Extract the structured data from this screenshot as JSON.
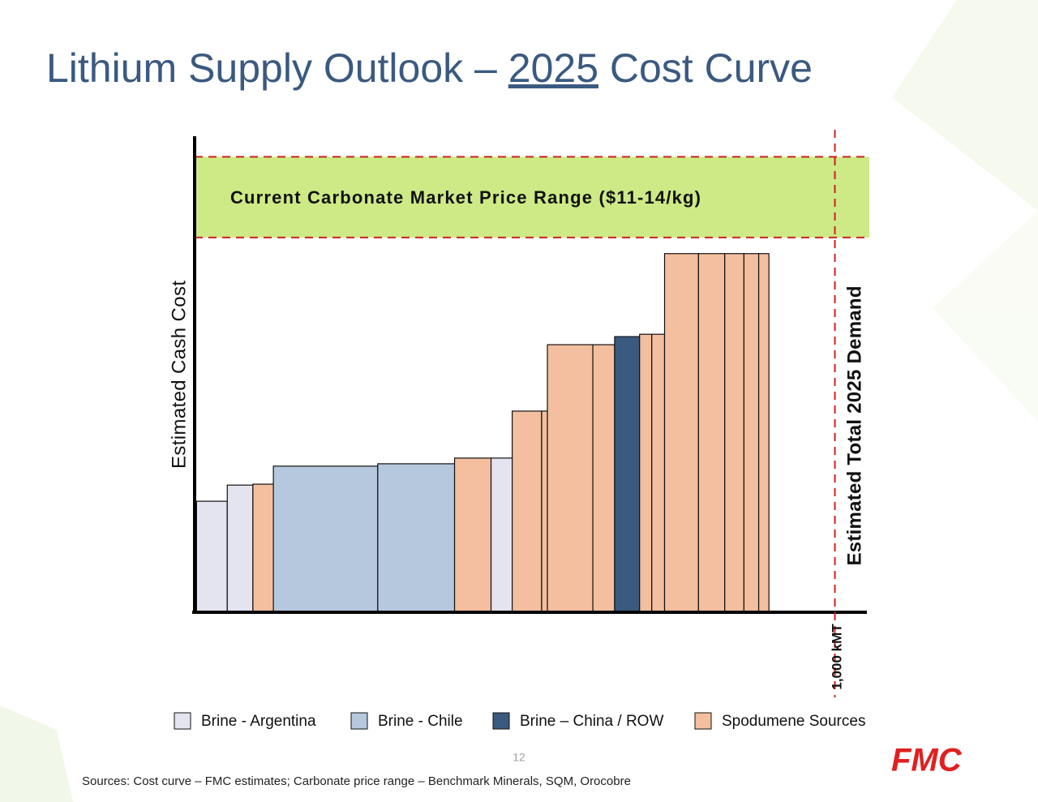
{
  "chart_data": {
    "type": "cost-curve",
    "title_parts": [
      "Lithium Supply Outlook – ",
      "2025",
      " Cost Curve"
    ],
    "y_label": "Estimated Cash Cost",
    "band_label": "Current Carbonate Market Price Range ($11-14/kg)",
    "band": [
      79,
      96
    ],
    "band_color": "#cdea86",
    "demand_label": "Estimated Total 2025 Demand",
    "demand_x": {
      "value": 1000,
      "label": "1,000 kMT"
    },
    "xlim": [
      0,
      1050
    ],
    "ylim": [
      0,
      100
    ],
    "series": [
      {
        "name": "Brine - Argentina",
        "color": "#e4e3f0"
      },
      {
        "name": "Brine - Chile",
        "color": "#b5c8dd"
      },
      {
        "name": "Brine – China / ROW",
        "color": "#3a5a80"
      },
      {
        "name": "Spodumene Sources",
        "color": "#f4bf9f"
      }
    ],
    "bars": [
      {
        "series": 0,
        "x0": 3,
        "x1": 51,
        "value": 23.4
      },
      {
        "series": 0,
        "x0": 51,
        "x1": 91,
        "value": 26.8
      },
      {
        "series": 3,
        "x0": 91,
        "x1": 123,
        "value": 27
      },
      {
        "series": 1,
        "x0": 123,
        "x1": 286,
        "value": 30.8
      },
      {
        "series": 1,
        "x0": 286,
        "x1": 406,
        "value": 31.3
      },
      {
        "series": 3,
        "x0": 406,
        "x1": 463,
        "value": 32.5
      },
      {
        "series": 0,
        "x0": 463,
        "x1": 496,
        "value": 32.5
      },
      {
        "series": 3,
        "x0": 496,
        "x1": 542,
        "value": 42.4
      },
      {
        "series": 3,
        "x0": 542,
        "x1": 551,
        "value": 42.4
      },
      {
        "series": 3,
        "x0": 551,
        "x1": 622,
        "value": 56.4
      },
      {
        "series": 3,
        "x0": 622,
        "x1": 656,
        "value": 56.4
      },
      {
        "series": 2,
        "x0": 656,
        "x1": 695,
        "value": 58.1
      },
      {
        "series": 3,
        "x0": 695,
        "x1": 714,
        "value": 58.6
      },
      {
        "series": 3,
        "x0": 714,
        "x1": 734,
        "value": 58.6
      },
      {
        "series": 3,
        "x0": 734,
        "x1": 787,
        "value": 75.6
      },
      {
        "series": 3,
        "x0": 787,
        "x1": 828,
        "value": 75.6
      },
      {
        "series": 3,
        "x0": 828,
        "x1": 858,
        "value": 75.6
      },
      {
        "series": 3,
        "x0": 858,
        "x1": 881,
        "value": 75.6
      },
      {
        "series": 3,
        "x0": 881,
        "x1": 897,
        "value": 75.6
      }
    ]
  },
  "page_number": "12",
  "sources": "Sources: Cost curve – FMC estimates;  Carbonate price range – Benchmark Minerals, SQM, Orocobre",
  "logo": "FMC"
}
